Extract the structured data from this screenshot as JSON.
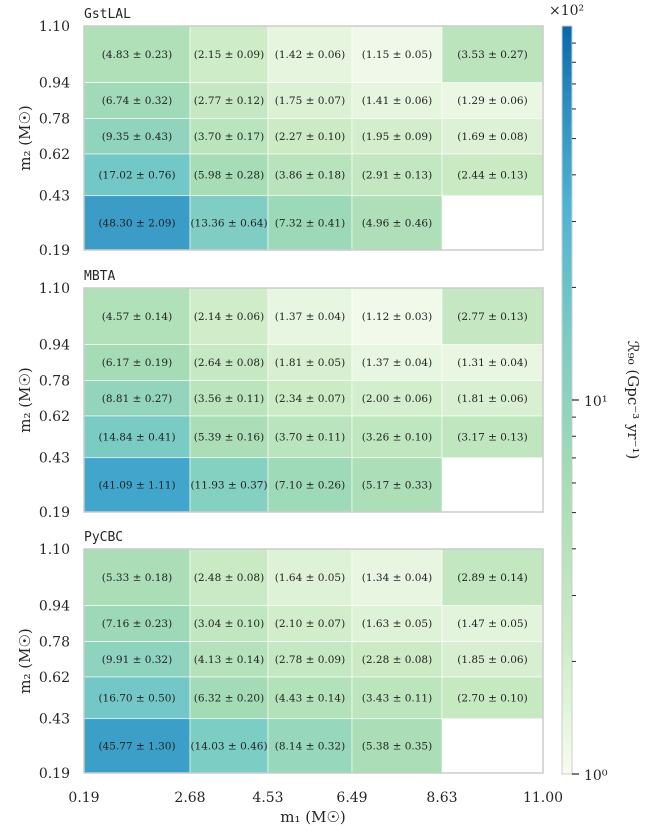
{
  "chart_data": {
    "type": "heatmap",
    "x_edges": [
      "0.19",
      "2.68",
      "4.53",
      "6.49",
      "8.63",
      "11.00"
    ],
    "y_edges": [
      "0.19",
      "0.43",
      "0.62",
      "0.78",
      "0.94",
      "1.10"
    ],
    "xlabel": "m₁ (M☉)",
    "ylabel": "m₂ (M☉)",
    "colorbar": {
      "label": "ℛ₉₀ (Gpc⁻³ yr⁻¹)",
      "scale": "log",
      "range": [
        1,
        100
      ],
      "multiplier": "×10²",
      "tick_labels": [
        "10¹",
        "10⁰"
      ],
      "colors": [
        "#f7fcf0",
        "#ccebc5",
        "#a8ddb5",
        "#7bccc4",
        "#4eb3d3",
        "#2b8cbe",
        "#0868ac"
      ]
    },
    "panels": [
      {
        "title": "GstLAL",
        "rows": [
          {
            "values": [
              4.83,
              2.15,
              1.42,
              1.15,
              3.53
            ],
            "labels": [
              "(4.83 ± 0.23)",
              "(2.15 ± 0.09)",
              "(1.42 ± 0.06)",
              "(1.15 ± 0.05)",
              "(3.53 ± 0.27)"
            ]
          },
          {
            "values": [
              6.74,
              2.77,
              1.75,
              1.41,
              1.29
            ],
            "labels": [
              "(6.74 ± 0.32)",
              "(2.77 ± 0.12)",
              "(1.75 ± 0.07)",
              "(1.41 ± 0.06)",
              "(1.29 ± 0.06)"
            ]
          },
          {
            "values": [
              9.35,
              3.7,
              2.27,
              1.95,
              1.69
            ],
            "labels": [
              "(9.35 ± 0.43)",
              "(3.70 ± 0.17)",
              "(2.27 ± 0.10)",
              "(1.95 ± 0.09)",
              "(1.69 ± 0.08)"
            ]
          },
          {
            "values": [
              17.02,
              5.98,
              3.86,
              2.91,
              2.44
            ],
            "labels": [
              "(17.02 ± 0.76)",
              "(5.98 ± 0.28)",
              "(3.86 ± 0.18)",
              "(2.91 ± 0.13)",
              "(2.44 ± 0.13)"
            ]
          },
          {
            "values": [
              48.3,
              13.36,
              7.32,
              4.96,
              null
            ],
            "labels": [
              "(48.30 ± 2.09)",
              "(13.36 ± 0.64)",
              "(7.32 ± 0.41)",
              "(4.96 ± 0.46)",
              ""
            ]
          }
        ]
      },
      {
        "title": "MBTA",
        "rows": [
          {
            "values": [
              4.57,
              2.14,
              1.37,
              1.12,
              2.77
            ],
            "labels": [
              "(4.57 ± 0.14)",
              "(2.14 ± 0.06)",
              "(1.37 ± 0.04)",
              "(1.12 ± 0.03)",
              "(2.77 ± 0.13)"
            ]
          },
          {
            "values": [
              6.17,
              2.64,
              1.81,
              1.37,
              1.31
            ],
            "labels": [
              "(6.17 ± 0.19)",
              "(2.64 ± 0.08)",
              "(1.81 ± 0.05)",
              "(1.37 ± 0.04)",
              "(1.31 ± 0.04)"
            ]
          },
          {
            "values": [
              8.81,
              3.56,
              2.34,
              2.0,
              1.81
            ],
            "labels": [
              "(8.81 ± 0.27)",
              "(3.56 ± 0.11)",
              "(2.34 ± 0.07)",
              "(2.00 ± 0.06)",
              "(1.81 ± 0.06)"
            ]
          },
          {
            "values": [
              14.84,
              5.39,
              3.7,
              3.26,
              3.17
            ],
            "labels": [
              "(14.84 ± 0.41)",
              "(5.39 ± 0.16)",
              "(3.70 ± 0.11)",
              "(3.26 ± 0.10)",
              "(3.17 ± 0.13)"
            ]
          },
          {
            "values": [
              41.09,
              11.93,
              7.1,
              5.17,
              null
            ],
            "labels": [
              "(41.09 ± 1.11)",
              "(11.93 ± 0.37)",
              "(7.10 ± 0.26)",
              "(5.17 ± 0.33)",
              ""
            ]
          }
        ]
      },
      {
        "title": "PyCBC",
        "rows": [
          {
            "values": [
              5.33,
              2.48,
              1.64,
              1.34,
              2.89
            ],
            "labels": [
              "(5.33 ± 0.18)",
              "(2.48 ± 0.08)",
              "(1.64 ± 0.05)",
              "(1.34 ± 0.04)",
              "(2.89 ± 0.14)"
            ]
          },
          {
            "values": [
              7.16,
              3.04,
              2.1,
              1.63,
              1.47
            ],
            "labels": [
              "(7.16 ± 0.23)",
              "(3.04 ± 0.10)",
              "(2.10 ± 0.07)",
              "(1.63 ± 0.05)",
              "(1.47 ± 0.05)"
            ]
          },
          {
            "values": [
              9.91,
              4.13,
              2.78,
              2.28,
              1.85
            ],
            "labels": [
              "(9.91 ± 0.32)",
              "(4.13 ± 0.14)",
              "(2.78 ± 0.09)",
              "(2.28 ± 0.08)",
              "(1.85 ± 0.06)"
            ]
          },
          {
            "values": [
              16.7,
              6.32,
              4.43,
              3.43,
              2.7
            ],
            "labels": [
              "(16.70 ± 0.50)",
              "(6.32 ± 0.20)",
              "(4.43 ± 0.14)",
              "(3.43 ± 0.11)",
              "(2.70 ± 0.10)"
            ]
          },
          {
            "values": [
              45.77,
              14.03,
              8.14,
              5.38,
              null
            ],
            "labels": [
              "(45.77 ± 1.30)",
              "(14.03 ± 0.46)",
              "(8.14 ± 0.32)",
              "(5.38 ± 0.35)",
              ""
            ]
          }
        ]
      }
    ]
  }
}
